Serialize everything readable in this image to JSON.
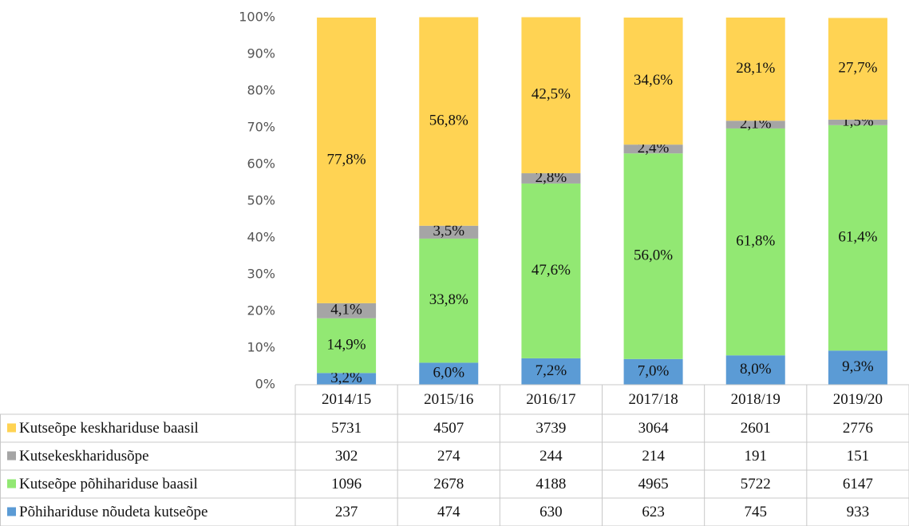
{
  "chart_data": {
    "type": "stacked_bar",
    "categories": [
      "2014/15",
      "2015/16",
      "2016/17",
      "2017/18",
      "2018/19",
      "2019/20"
    ],
    "ylim": [
      0,
      100
    ],
    "yticks": [
      {
        "value": 0,
        "label": "0%"
      },
      {
        "value": 10,
        "label": "10%"
      },
      {
        "value": 20,
        "label": "20%"
      },
      {
        "value": 30,
        "label": "30%"
      },
      {
        "value": 40,
        "label": "40%"
      },
      {
        "value": 50,
        "label": "50%"
      },
      {
        "value": 60,
        "label": "60%"
      },
      {
        "value": 70,
        "label": "70%"
      },
      {
        "value": 80,
        "label": "80%"
      },
      {
        "value": 90,
        "label": "90%"
      },
      {
        "value": 100,
        "label": "100%"
      }
    ],
    "series": [
      {
        "name": "Põhihariduse nõudeta kutseõpe",
        "color": "#5b9bd5",
        "values": [
          3.2,
          6.0,
          7.2,
          7.0,
          8.0,
          9.3
        ],
        "value_labels": [
          "3,2%",
          "6,0%",
          "7,2%",
          "7,0%",
          "8,0%",
          "9,3%"
        ],
        "counts": [
          237,
          474,
          630,
          623,
          745,
          933
        ]
      },
      {
        "name": "Kutseõpe põhihariduse baasil",
        "color": "#92e873",
        "values": [
          14.9,
          33.8,
          47.6,
          56.0,
          61.8,
          61.4
        ],
        "value_labels": [
          "14,9%",
          "33,8%",
          "47,6%",
          "56,0%",
          "61,8%",
          "61,4%"
        ],
        "counts": [
          1096,
          2678,
          4188,
          4965,
          5722,
          6147
        ]
      },
      {
        "name": "Kutsekeskharidusõpe",
        "color": "#a5a5a5",
        "values": [
          4.1,
          3.5,
          2.8,
          2.4,
          2.1,
          1.5
        ],
        "value_labels": [
          "4,1%",
          "3,5%",
          "2,8%",
          "2,4%",
          "2,1%",
          "1,5%"
        ],
        "counts": [
          302,
          274,
          244,
          214,
          191,
          151
        ]
      },
      {
        "name": "Kutseõpe keskhariduse baasil",
        "color": "#ffd353",
        "values": [
          77.8,
          56.8,
          42.5,
          34.6,
          28.1,
          27.7
        ],
        "value_labels": [
          "77,8%",
          "56,8%",
          "42,5%",
          "34,6%",
          "28,1%",
          "27,7%"
        ],
        "counts": [
          5731,
          4507,
          3739,
          3064,
          2601,
          2776
        ]
      }
    ]
  }
}
